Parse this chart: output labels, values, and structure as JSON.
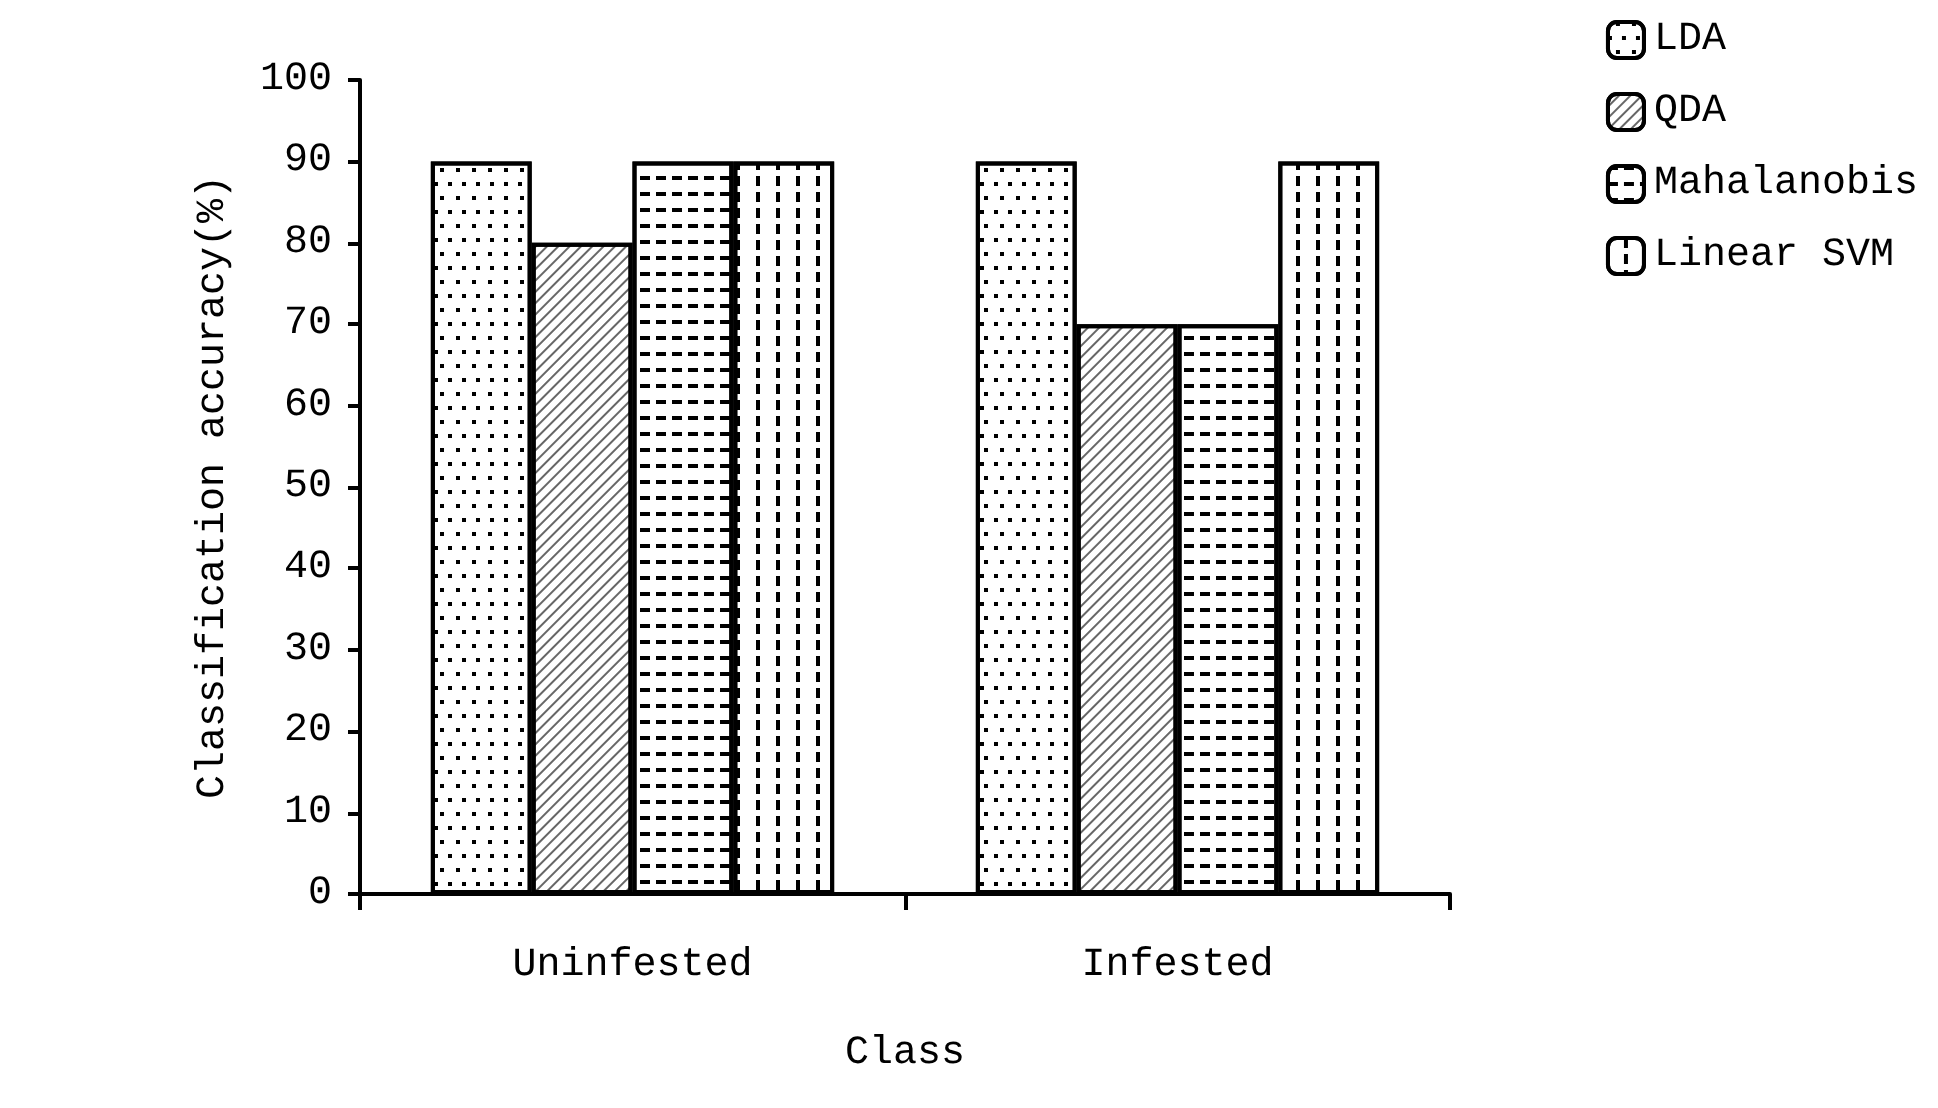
{
  "chart_data": {
    "type": "bar",
    "xlabel": "Class",
    "ylabel": "Classification accuracy(%)",
    "categories": [
      "Uninfested",
      "Infested"
    ],
    "series": [
      {
        "name": "LDA",
        "color": "#ffffff",
        "values": [
          90,
          90
        ]
      },
      {
        "name": "QDA",
        "color": "#ffffff",
        "values": [
          80,
          70
        ]
      },
      {
        "name": "Mahalanobis",
        "color": "#ffffff",
        "values": [
          90,
          70
        ]
      },
      {
        "name": "Linear SVM",
        "color": "#ffffff",
        "values": [
          90,
          90
        ]
      }
    ],
    "ylim": [
      0,
      100
    ],
    "yticks": [
      0,
      10,
      20,
      30,
      40,
      50,
      60,
      70,
      80,
      90,
      100
    ],
    "grid": false,
    "legend": "top right"
  }
}
